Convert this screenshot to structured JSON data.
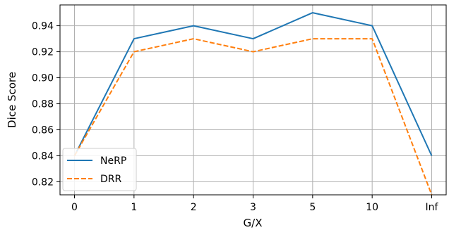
{
  "chart_data": {
    "type": "line",
    "title": "",
    "xlabel": "G/X",
    "ylabel": "Dice Score",
    "categories": [
      "0",
      "1",
      "2",
      "3",
      "5",
      "10",
      "Inf"
    ],
    "ylim": [
      0.81,
      0.956
    ],
    "yticks": [
      0.82,
      0.84,
      0.86,
      0.88,
      0.9,
      0.92,
      0.94
    ],
    "ytick_labels": [
      "0.82",
      "0.84",
      "0.86",
      "0.88",
      "0.90",
      "0.92",
      "0.94"
    ],
    "grid": true,
    "legend_position": "lower-left",
    "series": [
      {
        "name": "NeRP",
        "color": "#1f77b4",
        "style": "solid",
        "values": [
          0.84,
          0.93,
          0.94,
          0.93,
          0.95,
          0.94,
          0.84
        ]
      },
      {
        "name": "DRR",
        "color": "#ff7f0e",
        "style": "dashed",
        "values": [
          0.84,
          0.92,
          0.93,
          0.92,
          0.93,
          0.93,
          0.81
        ]
      }
    ]
  }
}
